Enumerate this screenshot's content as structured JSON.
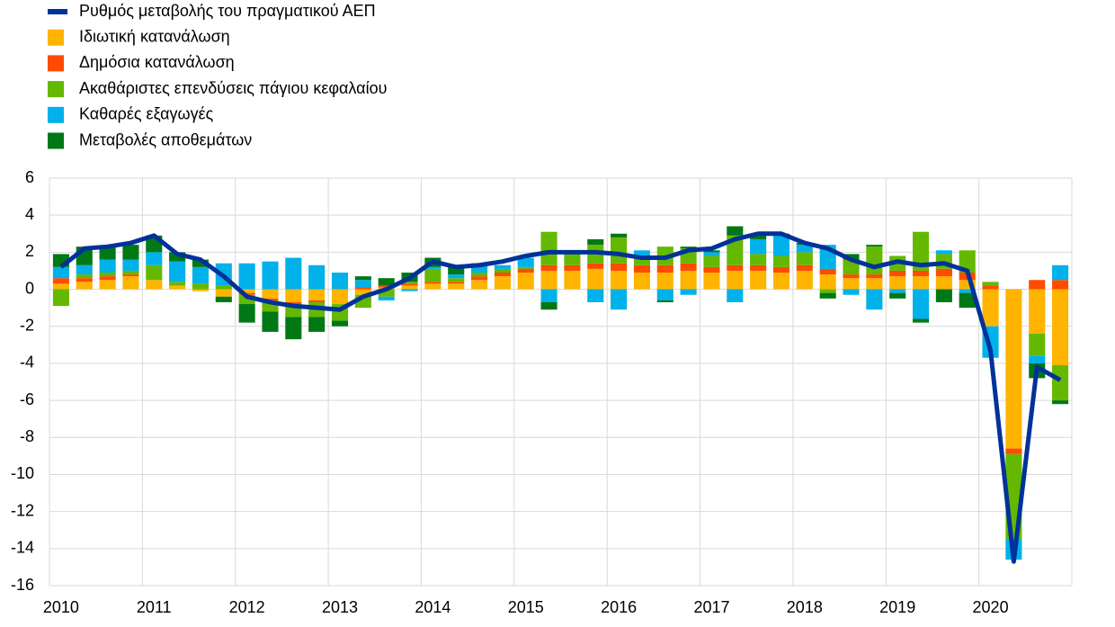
{
  "chart_data": {
    "type": "bar",
    "stacked": true,
    "grid": true,
    "legend": "top-left",
    "categories": [
      "2010",
      null,
      null,
      null,
      "2011",
      null,
      null,
      null,
      "2012",
      null,
      null,
      null,
      "2013",
      null,
      null,
      null,
      "2014",
      null,
      null,
      null,
      "2015",
      null,
      null,
      null,
      "2016",
      null,
      null,
      null,
      "2017",
      null,
      null,
      null,
      "2018",
      null,
      null,
      null,
      "2019",
      null,
      null,
      null,
      "2020",
      null,
      null,
      null
    ],
    "ylim": [
      -16,
      6
    ],
    "yticks": [
      -16,
      -14,
      -12,
      -10,
      -8,
      -6,
      -4,
      -2,
      0,
      2,
      4,
      6
    ],
    "series": [
      {
        "name": "Ρυθμός μεταβολής του πραγματικού ΑΕΠ",
        "type": "line",
        "color": "#003299",
        "values": [
          1.2,
          2.2,
          2.3,
          2.5,
          2.9,
          1.9,
          1.6,
          0.7,
          -0.4,
          -0.7,
          -0.9,
          -1.0,
          -1.1,
          -0.4,
          0.0,
          0.6,
          1.5,
          1.2,
          1.3,
          1.5,
          1.8,
          2.0,
          2.0,
          2.0,
          1.9,
          1.7,
          1.7,
          2.1,
          2.2,
          2.7,
          3.0,
          3.0,
          2.5,
          2.2,
          1.6,
          1.2,
          1.5,
          1.3,
          1.4,
          1.0,
          -3.3,
          -14.7,
          -4.2,
          -4.9
        ]
      },
      {
        "name": "Ιδιωτική κατανάλωση",
        "color": "#ffb400",
        "values": [
          0.3,
          0.4,
          0.5,
          0.7,
          0.5,
          0.2,
          -0.1,
          -0.4,
          -0.2,
          -0.5,
          -0.7,
          -0.6,
          -0.8,
          -0.3,
          0.1,
          0.2,
          0.3,
          0.3,
          0.5,
          0.7,
          0.9,
          1.0,
          1.0,
          1.1,
          1.0,
          0.9,
          0.9,
          1.0,
          0.9,
          1.0,
          1.0,
          0.9,
          1.0,
          0.8,
          0.6,
          0.6,
          0.7,
          0.7,
          0.7,
          0.5,
          -2.0,
          -8.6,
          -2.4,
          -4.1
        ]
      },
      {
        "name": "Δημόσια κατανάλωση",
        "color": "#ff4b00",
        "values": [
          0.3,
          0.2,
          0.2,
          0.1,
          0.0,
          0.0,
          0.0,
          0.0,
          -0.1,
          -0.1,
          -0.1,
          -0.1,
          0.0,
          0.1,
          0.1,
          0.1,
          0.1,
          0.1,
          0.2,
          0.2,
          0.2,
          0.3,
          0.3,
          0.3,
          0.4,
          0.4,
          0.4,
          0.4,
          0.3,
          0.3,
          0.3,
          0.3,
          0.3,
          0.3,
          0.2,
          0.2,
          0.3,
          0.3,
          0.4,
          0.4,
          0.2,
          -0.3,
          0.5,
          0.5
        ]
      },
      {
        "name": "Ακαθάριστες επενδύσεις πάγιου κεφαλαίου",
        "color": "#65b800",
        "values": [
          -0.9,
          0.2,
          0.2,
          0.2,
          0.8,
          0.2,
          0.3,
          0.2,
          -0.5,
          -0.6,
          -0.7,
          -0.8,
          -0.9,
          -0.7,
          -0.4,
          0.1,
          0.7,
          0.2,
          0.2,
          0.2,
          0.1,
          1.8,
          0.6,
          1.0,
          1.4,
          0.5,
          1.0,
          0.8,
          0.6,
          1.6,
          0.6,
          0.6,
          0.7,
          -0.2,
          0.8,
          1.5,
          0.8,
          2.1,
          0.8,
          1.2,
          0.2,
          -4.6,
          -1.2,
          -1.9
        ]
      },
      {
        "name": "Καθαρές εξαγωγές",
        "color": "#00b1ea",
        "values": [
          0.6,
          0.5,
          0.7,
          0.6,
          0.7,
          1.1,
          0.9,
          1.2,
          1.4,
          1.5,
          1.7,
          1.3,
          0.9,
          0.4,
          -0.2,
          -0.1,
          0.1,
          0.2,
          0.4,
          0.2,
          0.5,
          -0.7,
          0.0,
          -0.7,
          -1.1,
          0.3,
          -0.6,
          -0.3,
          0.2,
          -0.7,
          0.8,
          1.1,
          0.4,
          1.3,
          -0.3,
          -1.1,
          -0.2,
          -1.6,
          0.2,
          -0.2,
          -1.7,
          -1.1,
          -0.4,
          0.8
        ]
      },
      {
        "name": "Μεταβολές αποθεμάτων",
        "color": "#007816",
        "values": [
          0.7,
          1.0,
          0.7,
          0.8,
          0.9,
          0.5,
          0.4,
          -0.3,
          -1.0,
          -1.1,
          -1.2,
          -0.8,
          -0.3,
          0.2,
          0.4,
          0.5,
          0.5,
          0.4,
          0.1,
          0.0,
          0.0,
          -0.4,
          0.0,
          0.3,
          0.2,
          0.0,
          -0.1,
          0.1,
          0.1,
          0.5,
          0.3,
          0.1,
          0.1,
          -0.3,
          0.3,
          0.1,
          -0.3,
          -0.2,
          -0.7,
          -0.8,
          0.0,
          0.0,
          -0.8,
          -0.2
        ]
      }
    ]
  }
}
